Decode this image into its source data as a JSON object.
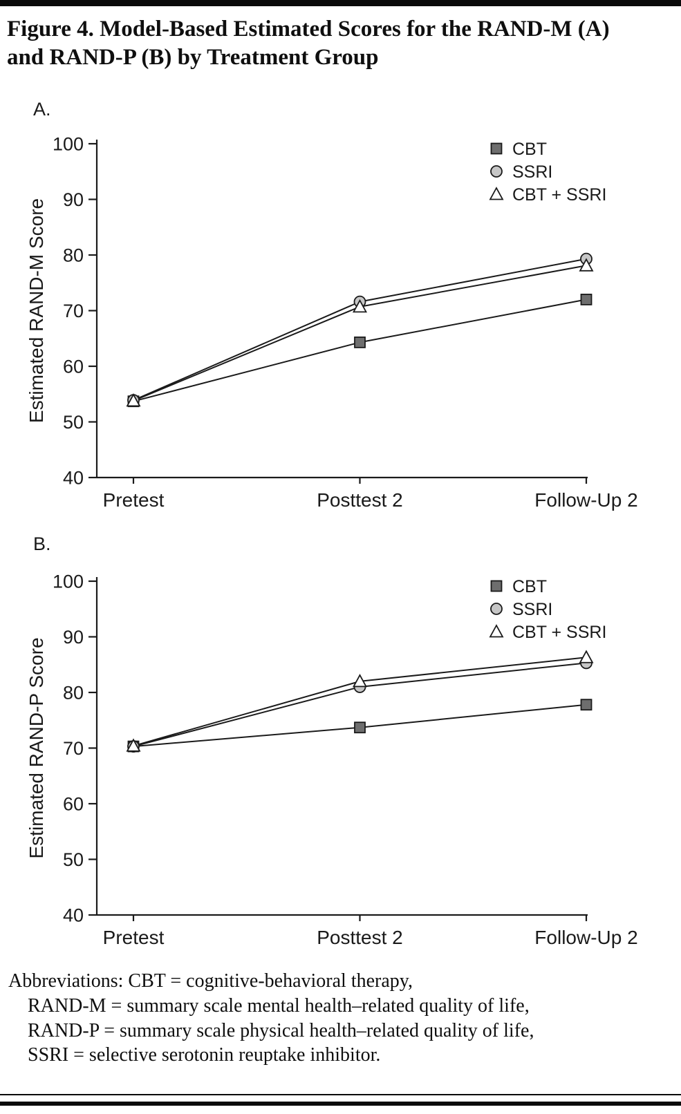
{
  "figure": {
    "title_lines": [
      "Figure 4. Model-Based Estimated Scores for the RAND-M (A)",
      "and RAND-P (B) by Treatment Group"
    ],
    "panel_a_label": "A.",
    "panel_b_label": "B.",
    "footer_lines": [
      "Abbreviations: CBT = cognitive-behavioral therapy,",
      "RAND-M = summary scale mental health–related quality of life,",
      "RAND-P = summary scale physical health–related quality of life,",
      "SSRI = selective serotonin reuptake inhibitor."
    ],
    "colors": {
      "line": "#1a1a1a",
      "cbt_marker": "#6e6e6e",
      "ssri_marker": "#c6c6c6",
      "cbt_ssri_marker": "#ffffff"
    }
  },
  "chart_data": [
    {
      "type": "line",
      "panel": "A",
      "title": "",
      "xlabel": "",
      "ylabel": "Estimated RAND-M Score",
      "categories": [
        "Pretest",
        "Posttest 2",
        "Follow-Up 2"
      ],
      "series": [
        {
          "name": "CBT",
          "marker": "square",
          "color": "#6e6e6e",
          "values": [
            53.7,
            64.3,
            72.0
          ]
        },
        {
          "name": "SSRI",
          "marker": "circle",
          "color": "#c6c6c6",
          "values": [
            53.9,
            71.6,
            79.3
          ]
        },
        {
          "name": "CBT + SSRI",
          "marker": "triangle",
          "color": "#ffffff",
          "values": [
            53.8,
            70.7,
            78.1
          ]
        }
      ],
      "ylim": [
        40,
        100
      ],
      "yticks": [
        40,
        50,
        60,
        70,
        80,
        90,
        100
      ],
      "grid": false,
      "legend_position": "top-right"
    },
    {
      "type": "line",
      "panel": "B",
      "title": "",
      "xlabel": "",
      "ylabel": "Estimated RAND-P Score",
      "categories": [
        "Pretest",
        "Posttest 2",
        "Follow-Up 2"
      ],
      "series": [
        {
          "name": "CBT",
          "marker": "square",
          "color": "#6e6e6e",
          "values": [
            70.3,
            73.7,
            77.8
          ]
        },
        {
          "name": "SSRI",
          "marker": "circle",
          "color": "#c6c6c6",
          "values": [
            70.3,
            81.0,
            85.3
          ]
        },
        {
          "name": "CBT + SSRI",
          "marker": "triangle",
          "color": "#ffffff",
          "values": [
            70.4,
            82.0,
            86.3
          ]
        }
      ],
      "ylim": [
        40,
        100
      ],
      "yticks": [
        40,
        50,
        60,
        70,
        80,
        90,
        100
      ],
      "grid": false,
      "legend_position": "top-right"
    }
  ]
}
